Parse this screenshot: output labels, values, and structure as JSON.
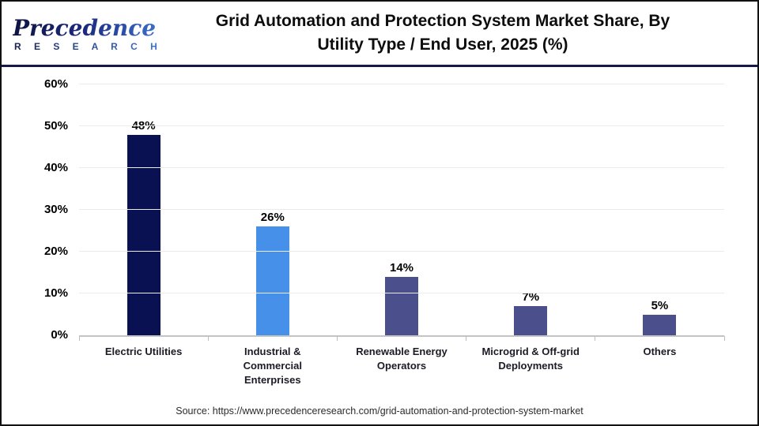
{
  "header": {
    "logo_primary": "Precedence",
    "logo_secondary": "R E S E A R C H",
    "title_line1": "Grid Automation and Protection System Market Share, By",
    "title_line2": "Utility Type / End User, 2025 (%)"
  },
  "chart_data": {
    "type": "bar",
    "title": "Grid Automation and Protection System Market Share, By Utility Type / End User, 2025 (%)",
    "categories": [
      "Electric Utilities",
      "Industrial & Commercial Enterprises",
      "Renewable Energy Operators",
      "Microgrid & Off-grid Deployments",
      "Others"
    ],
    "values": [
      48,
      26,
      14,
      7,
      5
    ],
    "value_labels": [
      "48%",
      "26%",
      "14%",
      "7%",
      "5%"
    ],
    "bar_colors": [
      "#0a1152",
      "#4690ea",
      "#4b4f8b",
      "#4b4f8b",
      "#4b4f8b"
    ],
    "y_ticks": [
      "0%",
      "10%",
      "20%",
      "30%",
      "40%",
      "50%",
      "60%"
    ],
    "y_tick_values": [
      0,
      10,
      20,
      30,
      40,
      50,
      60
    ],
    "ylim": [
      0,
      60
    ],
    "xlabel": "",
    "ylabel": "",
    "grid": "horizontal",
    "legend": "none"
  },
  "footer": {
    "source": "Source: https://www.precedenceresearch.com/grid-automation-and-protection-system-market"
  },
  "colors": {
    "navy_bar": "#0a1152",
    "blue_bar": "#4690ea",
    "slate_bar": "#4b4f8b",
    "divider": "#131a4a",
    "gridline": "#ececec",
    "axis": "#c4c4c4",
    "frame": "#111111"
  }
}
